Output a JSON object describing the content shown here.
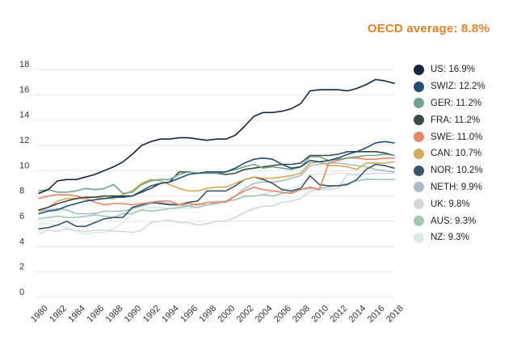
{
  "header": {
    "oecd_average": "OECD average: 8.8%",
    "accent_color": "#e0822a"
  },
  "chart_data": {
    "type": "line",
    "title": "",
    "xlabel": "",
    "ylabel": "",
    "ylim": [
      0,
      18
    ],
    "yticks": [
      0,
      2,
      4,
      6,
      8,
      10,
      12,
      14,
      16,
      18
    ],
    "xlim": [
      1980,
      2018
    ],
    "xticks": [
      "1980",
      "1982",
      "1984",
      "1986",
      "1988",
      "1990",
      "1992",
      "1994",
      "1996",
      "1998",
      "2000",
      "2002",
      "2004",
      "2006",
      "2008",
      "2010",
      "2012",
      "2014",
      "2016",
      "2018"
    ],
    "grid": true,
    "legend_position": "right",
    "x": [
      1980,
      1981,
      1982,
      1983,
      1984,
      1985,
      1986,
      1987,
      1988,
      1989,
      1990,
      1991,
      1992,
      1993,
      1994,
      1995,
      1996,
      1997,
      1998,
      1999,
      2000,
      2001,
      2002,
      2003,
      2004,
      2005,
      2006,
      2007,
      2008,
      2009,
      2010,
      2011,
      2012,
      2013,
      2014,
      2015,
      2016,
      2017,
      2018
    ],
    "series": [
      {
        "name": "US: 16.9%",
        "color": "#15263d",
        "values": [
          8.2,
          8.5,
          9.2,
          9.3,
          9.3,
          9.5,
          9.7,
          10.0,
          10.3,
          10.7,
          11.3,
          12.0,
          12.3,
          12.5,
          12.5,
          12.6,
          12.6,
          12.5,
          12.4,
          12.5,
          12.5,
          12.8,
          13.5,
          14.3,
          14.6,
          14.6,
          14.7,
          14.9,
          15.3,
          16.3,
          16.4,
          16.4,
          16.4,
          16.3,
          16.5,
          16.8,
          17.2,
          17.1,
          16.9
        ]
      },
      {
        "name": "SWIZ: 12.2%",
        "color": "#1f4e79",
        "values": [
          6.6,
          6.8,
          6.9,
          7.2,
          7.4,
          7.6,
          7.7,
          7.8,
          7.9,
          7.9,
          8.0,
          8.4,
          8.8,
          9.0,
          9.1,
          9.4,
          9.7,
          9.8,
          9.9,
          9.9,
          9.9,
          10.2,
          10.6,
          10.9,
          11.0,
          10.9,
          10.5,
          10.2,
          10.3,
          10.8,
          10.7,
          10.8,
          11.0,
          11.3,
          11.5,
          11.8,
          12.2,
          12.3,
          12.2
        ]
      },
      {
        "name": "GER: 11.2%",
        "color": "#6fa58a",
        "values": [
          8.4,
          8.5,
          8.3,
          8.3,
          8.4,
          8.6,
          8.5,
          8.6,
          8.9,
          8.2,
          8.3,
          8.9,
          9.2,
          9.3,
          9.3,
          9.7,
          9.9,
          9.8,
          9.8,
          9.8,
          9.9,
          10.1,
          10.3,
          10.5,
          10.2,
          10.3,
          10.2,
          10.1,
          10.3,
          11.1,
          11.1,
          10.8,
          10.9,
          11.0,
          11.1,
          11.2,
          11.2,
          11.3,
          11.2
        ]
      },
      {
        "name": "FRA: 11.2%",
        "color": "#3d4a3f",
        "values": [
          6.9,
          7.1,
          7.4,
          7.6,
          7.8,
          7.9,
          7.9,
          8.0,
          8.0,
          8.0,
          8.0,
          8.3,
          8.6,
          9.0,
          9.1,
          9.9,
          9.9,
          9.8,
          9.8,
          9.8,
          9.7,
          9.8,
          10.1,
          10.2,
          10.3,
          10.4,
          10.5,
          10.5,
          10.6,
          11.2,
          11.2,
          11.2,
          11.3,
          11.5,
          11.5,
          11.5,
          11.5,
          11.4,
          11.2
        ]
      },
      {
        "name": "SWE: 11.0%",
        "color": "#e8866a",
        "values": [
          7.8,
          8.0,
          8.1,
          8.1,
          8.0,
          7.8,
          7.5,
          7.3,
          7.4,
          7.4,
          7.3,
          7.4,
          7.5,
          7.6,
          7.6,
          7.3,
          7.4,
          7.3,
          7.5,
          7.5,
          7.5,
          8.0,
          8.4,
          8.7,
          8.5,
          8.4,
          8.3,
          8.2,
          8.5,
          8.7,
          8.5,
          10.6,
          10.8,
          11.0,
          11.0,
          10.9,
          10.9,
          11.0,
          11.0
        ]
      },
      {
        "name": "CAN: 10.7%",
        "color": "#d4aa5a",
        "values": [
          6.8,
          7.1,
          7.6,
          7.8,
          7.8,
          7.8,
          7.9,
          7.8,
          7.8,
          8.1,
          8.4,
          9.0,
          9.3,
          9.2,
          8.9,
          8.6,
          8.4,
          8.4,
          8.6,
          8.7,
          8.7,
          9.0,
          9.3,
          9.5,
          9.4,
          9.4,
          9.5,
          9.6,
          9.8,
          10.6,
          10.7,
          10.4,
          10.4,
          10.3,
          10.1,
          10.6,
          10.6,
          10.6,
          10.7
        ]
      },
      {
        "name": "NOR: 10.2%",
        "color": "#3b5568",
        "values": [
          5.4,
          5.5,
          5.7,
          6.0,
          5.6,
          5.6,
          5.9,
          6.2,
          6.3,
          6.3,
          7.1,
          7.3,
          7.5,
          7.4,
          7.3,
          7.3,
          7.5,
          7.6,
          8.4,
          8.4,
          8.4,
          8.8,
          9.3,
          9.5,
          9.3,
          9.0,
          8.5,
          8.4,
          8.6,
          9.6,
          8.9,
          8.8,
          8.8,
          8.9,
          9.3,
          10.1,
          10.5,
          10.4,
          10.2
        ]
      },
      {
        "name": "NETH: 9.9%",
        "color": "#a9bccb",
        "values": [
          6.8,
          6.9,
          7.0,
          6.9,
          6.6,
          6.6,
          6.6,
          6.8,
          6.8,
          6.8,
          7.0,
          7.2,
          7.4,
          7.5,
          7.4,
          7.3,
          7.2,
          7.1,
          7.3,
          7.5,
          7.6,
          8.0,
          8.6,
          9.0,
          9.1,
          9.1,
          9.2,
          9.4,
          9.6,
          10.4,
          10.5,
          10.6,
          10.6,
          10.5,
          10.4,
          10.3,
          10.1,
          10.0,
          9.9
        ]
      },
      {
        "name": "UK: 9.8%",
        "color": "#d4d7dc",
        "values": [
          5.0,
          5.3,
          5.2,
          5.4,
          5.3,
          5.2,
          5.3,
          5.3,
          5.2,
          5.2,
          5.1,
          5.3,
          5.9,
          6.0,
          6.1,
          5.9,
          5.9,
          5.7,
          5.8,
          6.0,
          6.0,
          6.3,
          6.7,
          7.0,
          7.2,
          7.2,
          7.5,
          7.6,
          7.8,
          8.4,
          8.5,
          8.5,
          8.6,
          9.7,
          9.7,
          9.7,
          9.8,
          9.8,
          9.8
        ]
      },
      {
        "name": "AUS: 9.3%",
        "color": "#a3c7b3",
        "values": [
          6.2,
          6.3,
          6.4,
          6.3,
          6.3,
          6.4,
          6.5,
          6.4,
          6.3,
          6.6,
          6.6,
          6.9,
          6.8,
          6.9,
          7.0,
          7.1,
          7.2,
          7.4,
          7.3,
          7.4,
          7.6,
          7.7,
          8.0,
          8.0,
          8.1,
          8.0,
          8.2,
          8.3,
          8.5,
          8.6,
          8.6,
          8.7,
          8.8,
          9.0,
          9.2,
          9.3,
          9.3,
          9.3,
          9.3
        ]
      },
      {
        "name": "NZ: 9.3%",
        "color": "#dde9e4",
        "values": [
          5.8,
          5.8,
          5.7,
          5.5,
          5.2,
          5.0,
          5.1,
          5.1,
          5.4,
          5.9,
          6.6,
          7.0,
          7.1,
          7.1,
          7.0,
          7.0,
          7.0,
          7.1,
          7.5,
          7.6,
          7.6,
          7.7,
          7.9,
          8.0,
          8.1,
          8.4,
          8.5,
          8.6,
          8.9,
          9.6,
          9.8,
          9.7,
          9.8,
          9.8,
          9.6,
          9.4,
          9.3,
          9.3,
          9.3
        ]
      }
    ]
  }
}
